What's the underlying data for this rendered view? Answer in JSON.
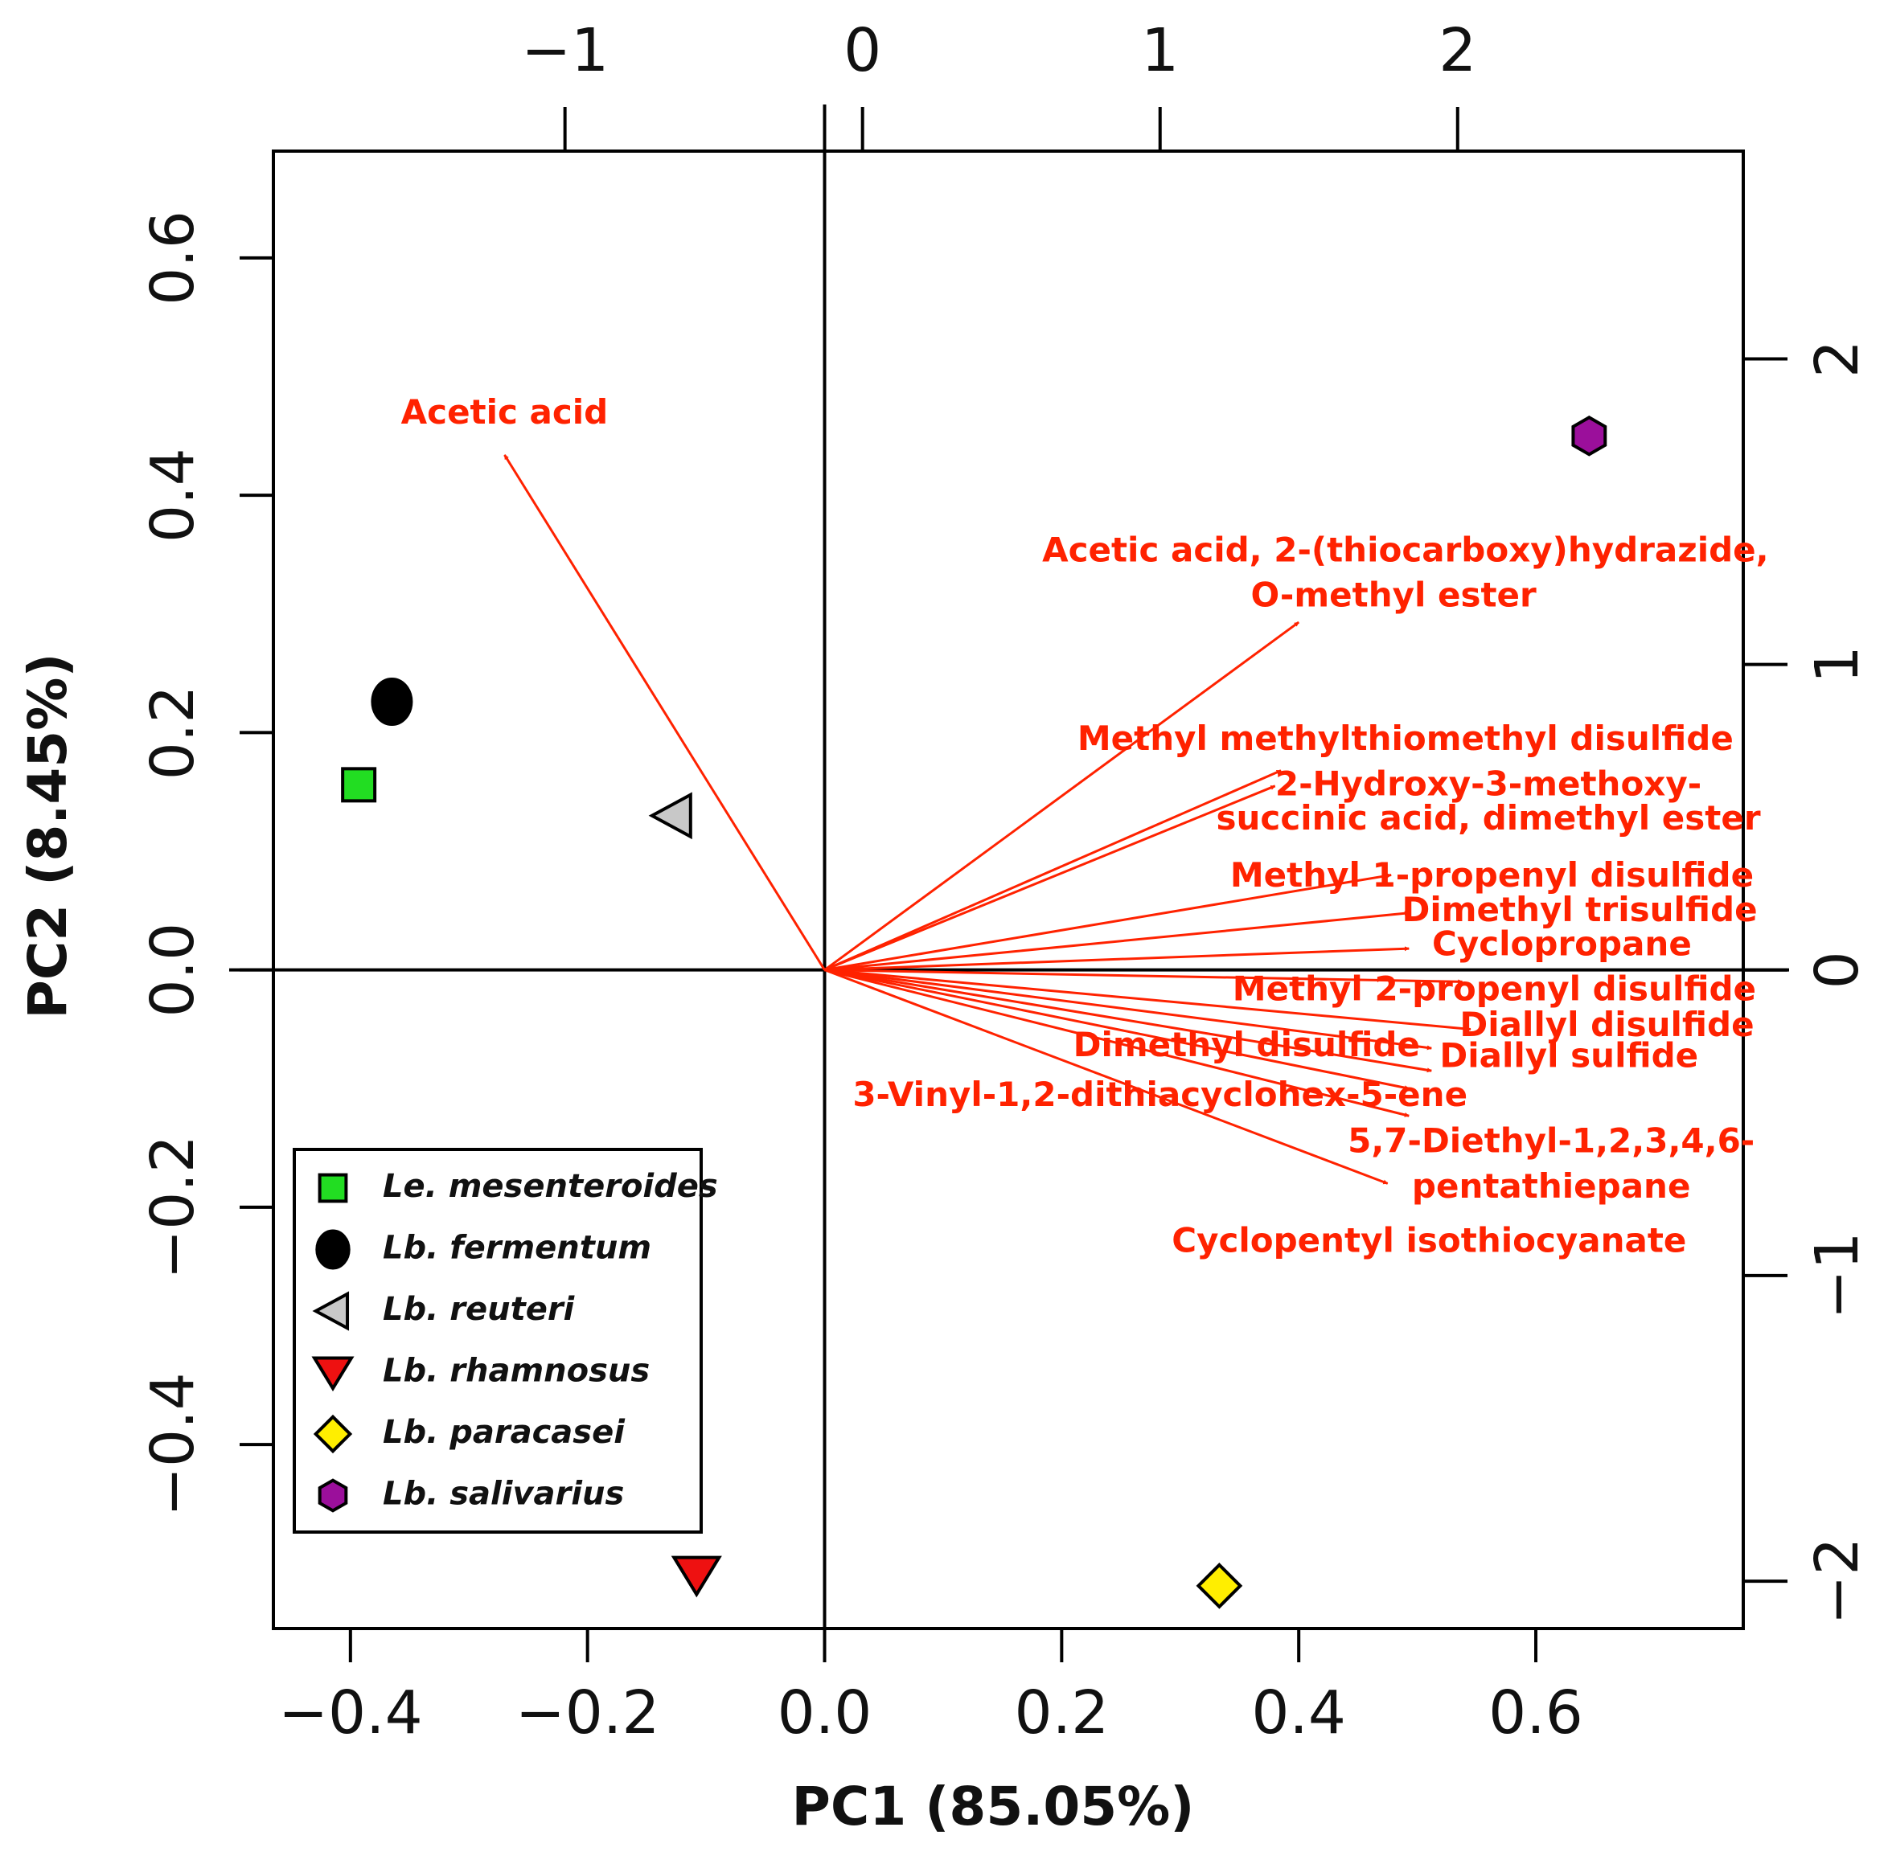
{
  "chart_data": {
    "type": "biplot",
    "xlabel": "PC1 (85.05%)",
    "ylabel": "PC2 (8.45%)",
    "xlim": [
      -0.465,
      0.775
    ],
    "ylim": [
      -0.555,
      0.69
    ],
    "top_lim": [
      -1.98,
      2.96
    ],
    "right_lim": [
      -2.155,
      2.68
    ],
    "x_ticks": [
      -0.4,
      -0.2,
      0.0,
      0.2,
      0.4,
      0.6
    ],
    "x_tick_labels": [
      "−0.4",
      "−0.2",
      "0.0",
      "0.2",
      "0.4",
      "0.6"
    ],
    "y_ticks": [
      -0.4,
      -0.2,
      0.0,
      0.2,
      0.4,
      0.6
    ],
    "y_tick_labels": [
      "−0.4",
      "−0.2",
      "0.0",
      "0.2",
      "0.4",
      "0.6"
    ],
    "top_ticks": [
      -1,
      0,
      1,
      2
    ],
    "top_tick_labels": [
      "−1",
      "0",
      "1",
      "2"
    ],
    "right_ticks": [
      -2,
      -1,
      0,
      1,
      2
    ],
    "right_tick_labels": [
      "−2",
      "−1",
      "0",
      "1",
      "2"
    ],
    "points": [
      {
        "name": "Le. mesenteroides",
        "x": -0.393,
        "y": 0.156,
        "shape": "square",
        "color": "#22dd22"
      },
      {
        "name": "Lb. fermentum",
        "x": -0.365,
        "y": 0.226,
        "shape": "ellipse",
        "color": "#000000"
      },
      {
        "name": "Lb. reuteri",
        "x": -0.128,
        "y": 0.13,
        "shape": "triangle-left",
        "color": "#c8c8c8"
      },
      {
        "name": "Lb. rhamnosus",
        "x": -0.108,
        "y": -0.51,
        "shape": "triangle-down",
        "color": "#ee1111"
      },
      {
        "name": "Lb. paracasei",
        "x": 0.333,
        "y": -0.519,
        "shape": "diamond",
        "color": "#ffee00"
      },
      {
        "name": "Lb. salivarius",
        "x": 0.645,
        "y": 0.45,
        "shape": "hexagon",
        "color": "#9b0f9b"
      }
    ],
    "arrows": [
      {
        "x": -0.27,
        "y": 0.434
      },
      {
        "x": 0.4,
        "y": 0.293
      },
      {
        "x": 0.385,
        "y": 0.168
      },
      {
        "x": 0.38,
        "y": 0.155
      },
      {
        "x": 0.478,
        "y": 0.08
      },
      {
        "x": 0.493,
        "y": 0.048
      },
      {
        "x": 0.493,
        "y": 0.018
      },
      {
        "x": 0.538,
        "y": -0.01
      },
      {
        "x": 0.545,
        "y": -0.05
      },
      {
        "x": 0.512,
        "y": -0.066
      },
      {
        "x": 0.512,
        "y": -0.085
      },
      {
        "x": 0.493,
        "y": -0.1
      },
      {
        "x": 0.493,
        "y": -0.123
      },
      {
        "x": 0.475,
        "y": -0.18
      }
    ],
    "labels": [
      {
        "text": "Acetic acid",
        "x": -0.27,
        "y": 0.468,
        "anchor": "middle"
      },
      {
        "text": "Acetic acid, 2-(thiocarboxy)hydrazide,",
        "x": 0.49,
        "y": 0.352,
        "anchor": "middle"
      },
      {
        "text": "O-methyl ester",
        "x": 0.48,
        "y": 0.314,
        "anchor": "middle"
      },
      {
        "text": "Methyl methylthiomethyl disulfide",
        "x": 0.49,
        "y": 0.193,
        "anchor": "middle"
      },
      {
        "text": "2-Hydroxy-3-methoxy-",
        "x": 0.56,
        "y": 0.155,
        "anchor": "middle"
      },
      {
        "text": "succinic acid, dimethyl ester",
        "x": 0.56,
        "y": 0.126,
        "anchor": "middle"
      },
      {
        "text": "Methyl 1-propenyl disulfide",
        "x": 0.563,
        "y": 0.078,
        "anchor": "middle"
      },
      {
        "text": "Dimethyl trisulfide",
        "x": 0.637,
        "y": 0.049,
        "anchor": "middle"
      },
      {
        "text": "Cyclopropane",
        "x": 0.622,
        "y": 0.02,
        "anchor": "middle"
      },
      {
        "text": "Methyl 2-propenyl disulfide",
        "x": 0.565,
        "y": -0.018,
        "anchor": "middle"
      },
      {
        "text": "Diallyl disulfide",
        "x": 0.66,
        "y": -0.048,
        "anchor": "middle"
      },
      {
        "text": "Dimethyl disulfide",
        "x": 0.356,
        "y": -0.065,
        "anchor": "middle"
      },
      {
        "text": "Diallyl sulfide",
        "x": 0.628,
        "y": -0.074,
        "anchor": "middle"
      },
      {
        "text": "3-Vinyl-1,2-dithiacyclohex-5-ene",
        "x": 0.283,
        "y": -0.107,
        "anchor": "middle"
      },
      {
        "text": "5,7-Diethyl-1,2,3,4,6-",
        "x": 0.613,
        "y": -0.146,
        "anchor": "middle"
      },
      {
        "text": "pentathiepane",
        "x": 0.613,
        "y": -0.184,
        "anchor": "middle"
      },
      {
        "text": "Cyclopentyl isothiocyanate",
        "x": 0.51,
        "y": -0.23,
        "anchor": "middle"
      }
    ],
    "legend": {
      "position": "bottom-left",
      "entries": [
        "Le. mesenteroides",
        "Lb. fermentum",
        "Lb. reuteri",
        "Lb. rhamnosus",
        "Lb. paracasei",
        "Lb. salivarius"
      ]
    },
    "arrow_color": "#ff2200"
  }
}
